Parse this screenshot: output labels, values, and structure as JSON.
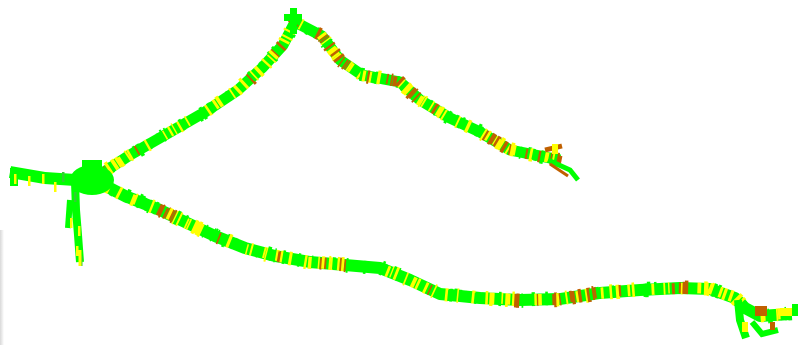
{
  "map": {
    "legend_colors": {
      "good": "#00ff00",
      "fair": "#ffff00",
      "poor": "#c06000"
    },
    "routes": [
      {
        "name": "",
        "id": "upper-route"
      },
      {
        "name": "",
        "id": "lower-route"
      }
    ]
  }
}
